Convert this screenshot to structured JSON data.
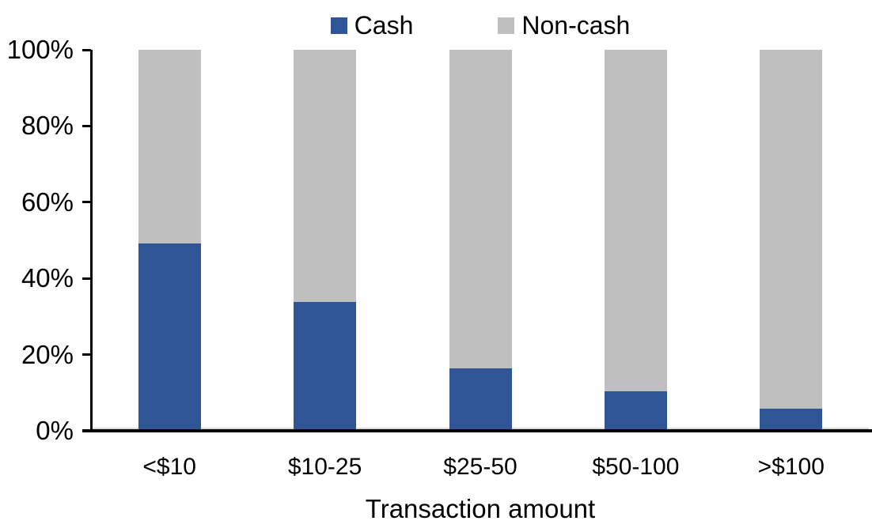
{
  "chart_data": {
    "type": "bar",
    "subtype": "stacked-100-percent",
    "title": "",
    "xlabel": "Transaction amount",
    "ylabel": "",
    "categories": [
      "<$10",
      "$10-25",
      "$25-50",
      "$50-100",
      ">$100"
    ],
    "series": [
      {
        "name": "Cash",
        "color": "#2F5597",
        "values": [
          49,
          33.5,
          16,
          10,
          5.5
        ]
      },
      {
        "name": "Non-cash",
        "color": "#BFBFBF",
        "values": [
          51,
          66.5,
          84,
          90,
          94.5
        ]
      }
    ],
    "ylim": [
      0,
      100
    ],
    "yticks": [
      "0%",
      "20%",
      "40%",
      "60%",
      "80%",
      "100%"
    ],
    "grid": false,
    "legend_position": "top-center",
    "axis_color": "#000000",
    "text_color": "#000000",
    "background_color": "#FFFFFF"
  }
}
